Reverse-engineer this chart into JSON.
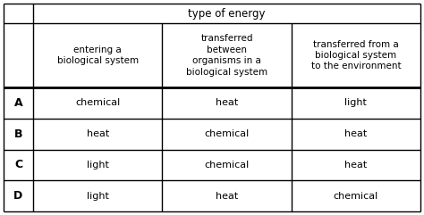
{
  "title_row": "type of energy",
  "col_headers": [
    "entering a\nbiological system",
    "transferred\nbetween\norganisms in a\nbiological system",
    "transferred from a\nbiological system\nto the environment"
  ],
  "row_labels": [
    "A",
    "B",
    "C",
    "D"
  ],
  "cells": [
    [
      "chemical",
      "heat",
      "light"
    ],
    [
      "heat",
      "chemical",
      "heat"
    ],
    [
      "light",
      "chemical",
      "heat"
    ],
    [
      "light",
      "heat",
      "chemical"
    ]
  ],
  "bg_color": "#ffffff",
  "line_color": "#000000",
  "text_color": "#000000",
  "header_fontsize": 7.5,
  "cell_fontsize": 8.0,
  "label_fontsize": 9.0,
  "title_fontsize": 8.5
}
